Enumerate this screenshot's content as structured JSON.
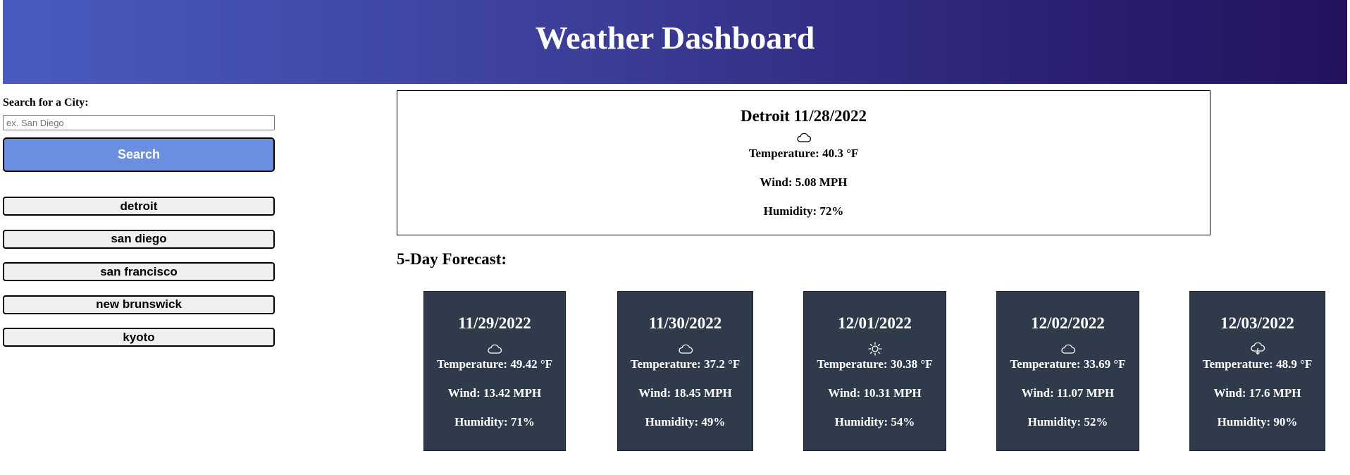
{
  "header": {
    "title": "Weather Dashboard"
  },
  "sidebar": {
    "search_label": "Search for a City:",
    "search_placeholder": "ex. San Diego",
    "search_value": "",
    "search_button": "Search",
    "history": [
      "detroit",
      "san diego",
      "san francisco",
      "new brunswick",
      "kyoto"
    ]
  },
  "current": {
    "title": "Detroit 11/28/2022",
    "icon": "cloud-icon",
    "temperature": "Temperature: 40.3 °F",
    "wind": "Wind: 5.08 MPH",
    "humidity": "Humidity: 72%"
  },
  "forecast": {
    "title": "5-Day Forecast:",
    "days": [
      {
        "date": "11/29/2022",
        "icon": "cloud-icon",
        "temperature": "Temperature: 49.42 °F",
        "wind": "Wind: 13.42 MPH",
        "humidity": "Humidity: 71%"
      },
      {
        "date": "11/30/2022",
        "icon": "cloud-icon",
        "temperature": "Temperature: 37.2 °F",
        "wind": "Wind: 18.45 MPH",
        "humidity": "Humidity: 49%"
      },
      {
        "date": "12/01/2022",
        "icon": "sun-icon",
        "temperature": "Temperature: 30.38 °F",
        "wind": "Wind: 10.31 MPH",
        "humidity": "Humidity: 54%"
      },
      {
        "date": "12/02/2022",
        "icon": "cloud-icon",
        "temperature": "Temperature: 33.69 °F",
        "wind": "Wind: 11.07 MPH",
        "humidity": "Humidity: 52%"
      },
      {
        "date": "12/03/2022",
        "icon": "cloud-rain-icon",
        "temperature": "Temperature: 48.9 °F",
        "wind": "Wind: 17.6 MPH",
        "humidity": "Humidity: 90%"
      }
    ]
  }
}
